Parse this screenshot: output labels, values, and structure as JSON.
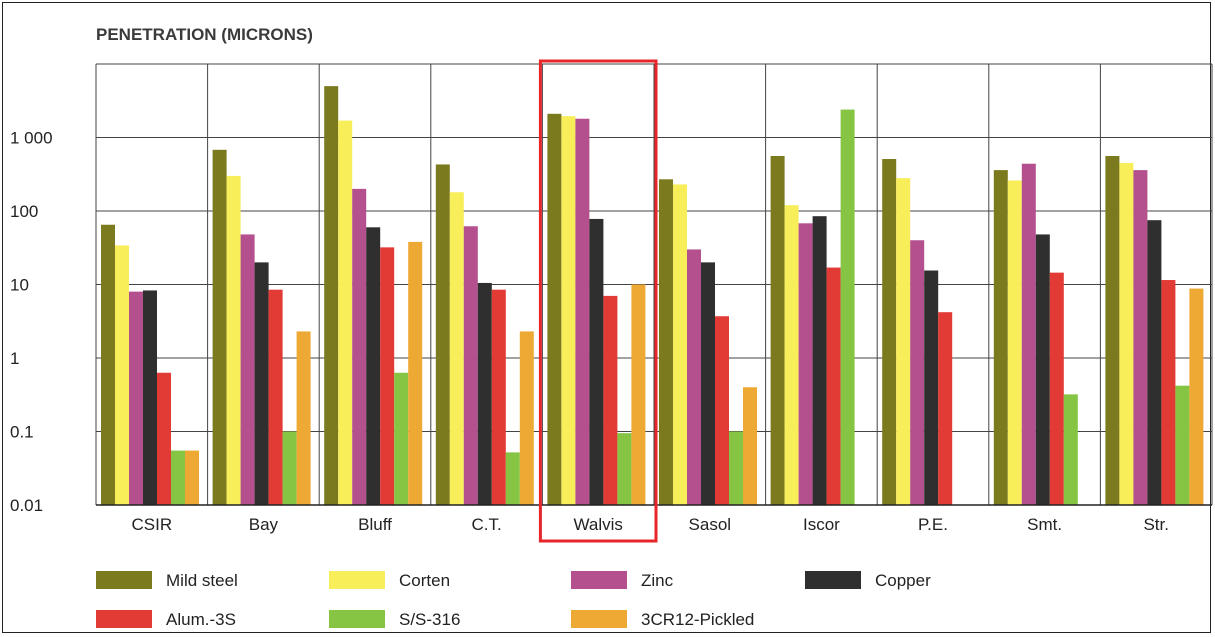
{
  "chart_data": {
    "type": "bar",
    "title": "PENETRATION (MICRONS)",
    "y_scale": "log",
    "ylim": [
      0.01,
      10000
    ],
    "yticks": [
      0.01,
      0.1,
      1,
      10,
      100,
      1000
    ],
    "ytick_labels": [
      "0.01",
      "0.1",
      "1",
      "10",
      "100",
      "1 000"
    ],
    "categories": [
      "CSIR",
      "Bay",
      "Bluff",
      "C.T.",
      "Walvis",
      "Sasol",
      "Iscor",
      "P.E.",
      "Smt.",
      "Str."
    ],
    "highlighted_category": "Walvis",
    "highlight_color": "#e8262a",
    "legend_position": "bottom",
    "series": [
      {
        "name": "Mild steel",
        "color": "#7b7a1e",
        "values": [
          65,
          680,
          5000,
          430,
          2100,
          270,
          560,
          510,
          360,
          560
        ]
      },
      {
        "name": "Corten",
        "color": "#f7ee5a",
        "values": [
          34,
          300,
          1700,
          180,
          1950,
          230,
          120,
          280,
          260,
          450
        ]
      },
      {
        "name": "Zinc",
        "color": "#b4508e",
        "values": [
          8,
          48,
          200,
          62,
          1800,
          30,
          68,
          40,
          440,
          360
        ]
      },
      {
        "name": "Copper",
        "color": "#2f2f2f",
        "values": [
          8.3,
          20,
          60,
          10.5,
          78,
          20,
          85,
          15.5,
          48,
          75
        ]
      },
      {
        "name": "Alum.-3S",
        "color": "#e23a34",
        "values": [
          0.63,
          8.5,
          32,
          8.5,
          7,
          3.7,
          17,
          4.2,
          14.5,
          11.5
        ]
      },
      {
        "name": "S/S-316",
        "color": "#86c444",
        "values": [
          0.055,
          0.1,
          0.63,
          0.052,
          0.095,
          0.1,
          2400,
          null,
          0.32,
          0.42
        ]
      },
      {
        "name": "3CR12-Pickled",
        "color": "#eea935",
        "values": [
          0.055,
          2.3,
          38,
          2.3,
          10,
          0.4,
          null,
          null,
          null,
          8.8
        ]
      }
    ]
  }
}
